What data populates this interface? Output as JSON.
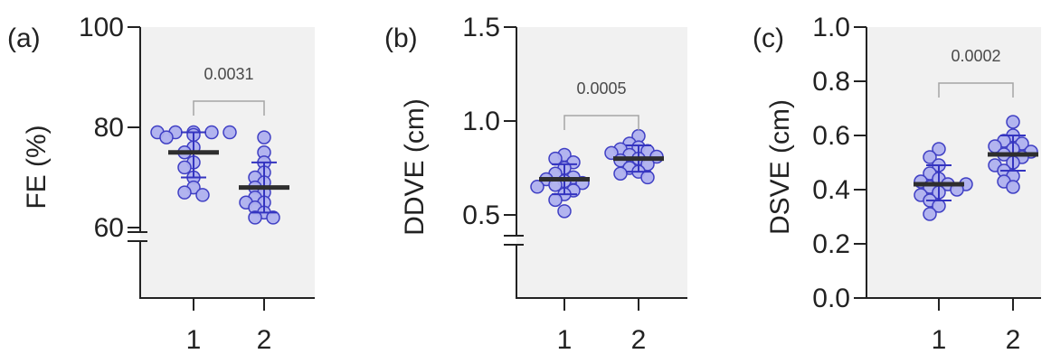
{
  "chart_data": [
    {
      "type": "scatter",
      "panel_label": "(a)",
      "ylabel": "FE (%)",
      "yticks": [
        60,
        80,
        100
      ],
      "ytick_labels": [
        "60",
        "80",
        "100"
      ],
      "ylim": [
        45,
        100
      ],
      "axis_break": true,
      "categories": [
        "1",
        "2"
      ],
      "series": [
        {
          "values": [
            79,
            79,
            79,
            79,
            79,
            78.5,
            78,
            76,
            75,
            73,
            72,
            70,
            68,
            67,
            66.5
          ]
        },
        {
          "values": [
            78,
            75,
            73,
            71,
            70,
            69,
            68,
            67,
            66,
            65,
            65,
            64,
            63,
            62,
            62
          ]
        }
      ],
      "summary": [
        {
          "mean": 75,
          "error_low": 70,
          "error_high": 79
        },
        {
          "mean": 68,
          "error_low": 63,
          "error_high": 73
        }
      ],
      "p_value": "0.0031",
      "background": "#f1f1f1"
    },
    {
      "type": "scatter",
      "panel_label": "(b)",
      "ylabel": "DDVE (cm)",
      "yticks": [
        0.5,
        1.0,
        1.5
      ],
      "ytick_labels": [
        "0.5",
        "1.0",
        "1.5"
      ],
      "ylim": [
        0.1,
        1.5
      ],
      "axis_break": true,
      "categories": [
        "1",
        "2"
      ],
      "series": [
        {
          "values": [
            0.82,
            0.8,
            0.78,
            0.75,
            0.72,
            0.7,
            0.69,
            0.68,
            0.67,
            0.66,
            0.65,
            0.63,
            0.61,
            0.58,
            0.52
          ]
        },
        {
          "values": [
            0.92,
            0.88,
            0.86,
            0.85,
            0.84,
            0.83,
            0.82,
            0.81,
            0.8,
            0.79,
            0.77,
            0.75,
            0.73,
            0.72,
            0.7
          ]
        }
      ],
      "summary": [
        {
          "mean": 0.69,
          "error_low": 0.61,
          "error_high": 0.77
        },
        {
          "mean": 0.8,
          "error_low": 0.73,
          "error_high": 0.87
        }
      ],
      "p_value": "0.0005",
      "background": "#f1f1f1"
    },
    {
      "type": "scatter",
      "panel_label": "(c)",
      "ylabel": "DSVE (cm)",
      "yticks": [
        0.0,
        0.2,
        0.4,
        0.6,
        0.8,
        1.0
      ],
      "ytick_labels": [
        "0.0",
        "0.2",
        "0.4",
        "0.6",
        "0.8",
        "1.0"
      ],
      "ylim": [
        0,
        1.0
      ],
      "axis_break": false,
      "categories": [
        "1",
        "2"
      ],
      "series": [
        {
          "values": [
            0.55,
            0.52,
            0.49,
            0.46,
            0.44,
            0.43,
            0.42,
            0.42,
            0.41,
            0.4,
            0.39,
            0.38,
            0.36,
            0.34,
            0.31
          ]
        },
        {
          "values": [
            0.65,
            0.6,
            0.58,
            0.57,
            0.56,
            0.55,
            0.54,
            0.53,
            0.52,
            0.5,
            0.49,
            0.47,
            0.45,
            0.43,
            0.41
          ]
        }
      ],
      "summary": [
        {
          "mean": 0.42,
          "error_low": 0.36,
          "error_high": 0.49
        },
        {
          "mean": 0.53,
          "error_low": 0.47,
          "error_high": 0.6
        }
      ],
      "p_value": "0.0002",
      "background": "#f1f1f1"
    }
  ],
  "colors": {
    "point_fill": "#aeb0ee",
    "point_stroke": "#3f3fc4",
    "error_bar": "#3434c0",
    "mean_bar": "#2e2e2e",
    "axis": "#222222",
    "bracket": "#a5a5a5"
  }
}
